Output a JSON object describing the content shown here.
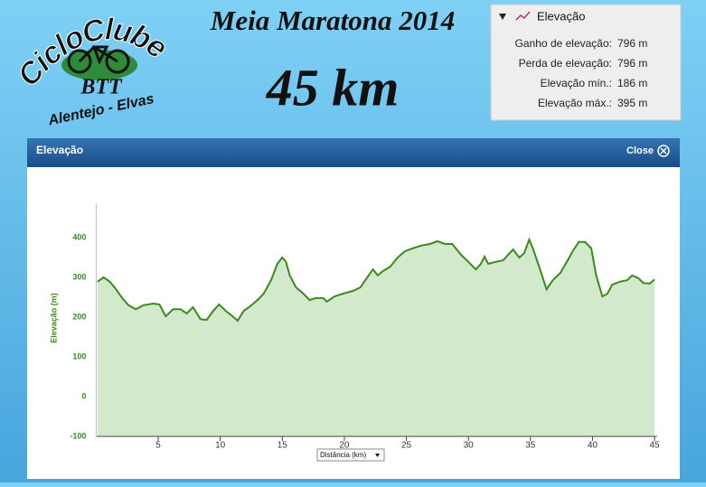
{
  "logo": {
    "title": "CicloClube",
    "badge": "BTT",
    "subtitle": "Alentejo - Elvas"
  },
  "header": {
    "title": "Meia Maratona 2014",
    "distance": "45 km"
  },
  "info": {
    "title": "Elevação",
    "rows": [
      [
        "Ganho de elevação:",
        "796 m"
      ],
      [
        "Perda de elevação:",
        "796 m"
      ],
      [
        "Elevação mín.:",
        "186 m"
      ],
      [
        "Elevação máx.:",
        "395 m"
      ]
    ]
  },
  "panel": {
    "title": "Elevação",
    "close": "Close"
  },
  "chart_data": {
    "type": "area",
    "x_label": "Distância (km)",
    "y_label": "Elevação (m)",
    "color": "#3a8a1e",
    "fill": "#d3e9cc",
    "grid": false,
    "xlim": [
      0,
      45.2
    ],
    "xticks": [
      5,
      10,
      15,
      20,
      25,
      30,
      35,
      40,
      45
    ],
    "ylim": [
      -100,
      450
    ],
    "yticks": [
      -100,
      0,
      100,
      200,
      300,
      400
    ],
    "x": [
      0.1,
      0.6,
      1.1,
      1.6,
      2.1,
      2.6,
      3.2,
      3.8,
      4.6,
      5.1,
      5.6,
      6.2,
      6.8,
      7.3,
      7.8,
      8.4,
      8.9,
      9.4,
      9.9,
      10.5,
      11.0,
      11.4,
      11.9,
      12.4,
      13.0,
      13.5,
      14.1,
      14.6,
      15.0,
      15.3,
      15.6,
      16.1,
      16.7,
      17.2,
      17.7,
      18.3,
      18.6,
      19.2,
      19.9,
      20.7,
      21.3,
      21.8,
      22.3,
      22.7,
      23.1,
      23.7,
      24.3,
      24.9,
      25.5,
      26.2,
      26.9,
      27.5,
      28.1,
      28.7,
      29.4,
      30.0,
      30.6,
      31.0,
      31.3,
      31.6,
      32.2,
      32.8,
      33.2,
      33.6,
      34.1,
      34.5,
      34.9,
      35.2,
      35.7,
      36.3,
      36.8,
      37.4,
      38.0,
      38.4,
      38.9,
      39.4,
      39.9,
      40.3,
      40.8,
      41.2,
      41.6,
      42.2,
      42.8,
      43.2,
      43.7,
      44.1,
      44.6,
      45.0
    ],
    "values": [
      289,
      300,
      289,
      270,
      248,
      230,
      220,
      230,
      234,
      232,
      202,
      220,
      220,
      209,
      225,
      195,
      193,
      214,
      232,
      214,
      202,
      191,
      216,
      227,
      243,
      259,
      293,
      334,
      350,
      339,
      305,
      275,
      259,
      243,
      248,
      248,
      239,
      252,
      259,
      266,
      275,
      298,
      320,
      305,
      316,
      327,
      350,
      366,
      373,
      380,
      384,
      391,
      384,
      384,
      357,
      339,
      320,
      334,
      352,
      334,
      339,
      343,
      357,
      370,
      350,
      361,
      395,
      373,
      327,
      270,
      293,
      311,
      343,
      366,
      389,
      389,
      373,
      305,
      252,
      259,
      282,
      289,
      293,
      305,
      298,
      286,
      284,
      295
    ]
  }
}
